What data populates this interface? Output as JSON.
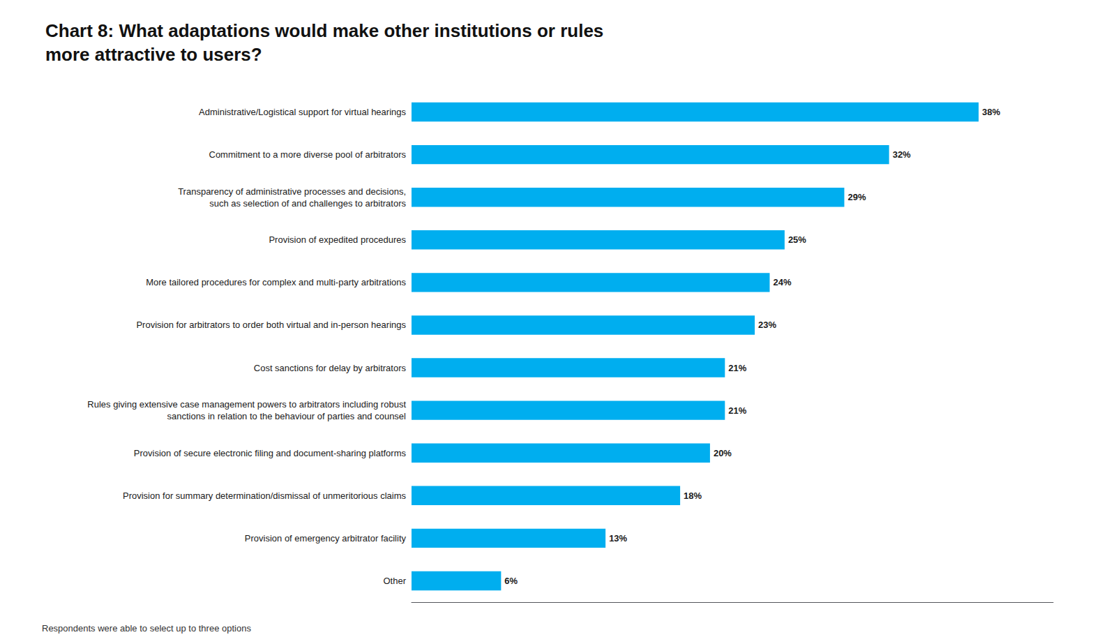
{
  "chart_data": {
    "type": "bar",
    "orientation": "horizontal",
    "title": "Chart 8: What adaptations would make other institutions or rules\nmore attractive to users?",
    "categories": [
      "Administrative/Logistical support for virtual hearings",
      "Commitment to a more diverse pool of arbitrators",
      "Transparency of administrative processes and decisions,\nsuch as selection of and challenges to arbitrators",
      "Provision of expedited procedures",
      "More tailored procedures for complex and multi-party arbitrations",
      "Provision for arbitrators to order both virtual and in-person hearings",
      "Cost sanctions for delay by arbitrators",
      "Rules giving extensive case management powers to arbitrators including robust\nsanctions in relation to the behaviour of parties and counsel",
      "Provision of secure electronic filing and document-sharing platforms",
      "Provision for summary determination/dismissal of unmeritorious claims",
      "Provision of emergency arbitrator facility",
      "Other"
    ],
    "values": [
      38,
      32,
      29,
      25,
      24,
      23,
      21,
      21,
      20,
      18,
      13,
      6
    ],
    "value_labels": [
      "38%",
      "32%",
      "29%",
      "25%",
      "24%",
      "23%",
      "21%",
      "21%",
      "20%",
      "18%",
      "13%",
      "6%"
    ],
    "data_labels": true,
    "color": "#00AEEF",
    "xlim": [
      0,
      43
    ],
    "tick_labels": "y",
    "grid": false,
    "annotations": [
      "Respondents were able to select up to three options"
    ]
  }
}
